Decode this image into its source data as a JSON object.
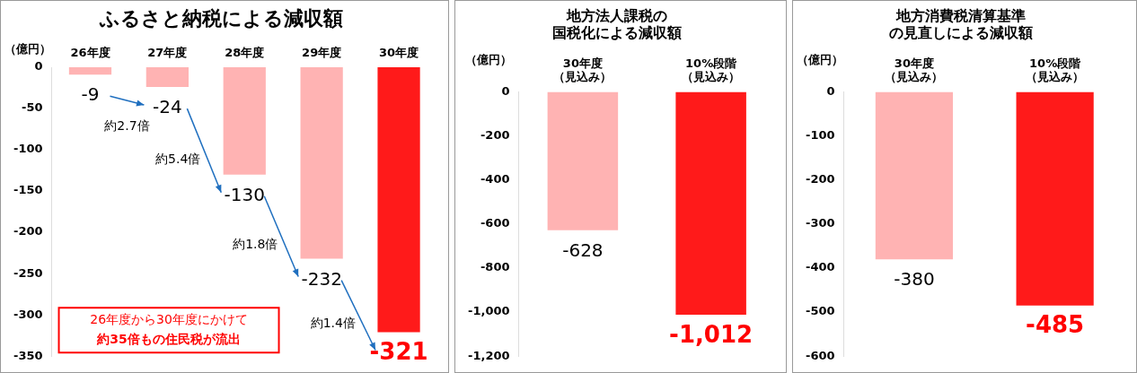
{
  "chart_data": [
    {
      "type": "bar",
      "title": "ふるさと納税による減収額",
      "ylabel": "（億円）",
      "categories": [
        "26年度",
        "27年度",
        "28年度",
        "29年度",
        "30年度"
      ],
      "colors": [
        "#ffb3b3",
        "#ffb3b3",
        "#ffb3b3",
        "#ffb3b3",
        "#ff1a1a"
      ],
      "values": [
        -9,
        -24,
        -130,
        -232,
        -321
      ],
      "ylim": [
        -350,
        0
      ],
      "yticks": [
        0,
        -50,
        -100,
        -150,
        -200,
        -250,
        -300,
        -350
      ],
      "grid": false,
      "legend": false,
      "data_labels": true,
      "annotations": [
        "約2.7倍",
        "約5.4倍",
        "約1.8倍",
        "約1.4倍",
        "26年度から30年度にかけて",
        "約35倍もの住民税が流出"
      ]
    },
    {
      "type": "bar",
      "title": "地方法人課税の国税化による減収額",
      "ylabel": "（億円）",
      "categories": [
        "30年度（見込み）",
        "10%段階（見込み）"
      ],
      "colors": [
        "#ffb3b3",
        "#ff1a1a"
      ],
      "values": [
        -628,
        -1012
      ],
      "value_labels": [
        "-628",
        "-1,012"
      ],
      "ylim": [
        -1200,
        0
      ],
      "yticks": [
        0,
        -200,
        -400,
        -600,
        -800,
        {
          "value": -1000,
          "label": "-1,000"
        },
        {
          "value": -1200,
          "label": "-1,200"
        }
      ],
      "grid": false,
      "legend": false
    },
    {
      "type": "bar",
      "title": "地方消費税清算基準の見直しによる減収額",
      "ylabel": "（億円）",
      "categories": [
        "30年度（見込み）",
        "10%段階（見込み）"
      ],
      "colors": [
        "#ffb3b3",
        "#ff1a1a"
      ],
      "values": [
        -380,
        -485
      ],
      "ylim": [
        -600,
        0
      ],
      "yticks": [
        0,
        -100,
        -200,
        -300,
        -400,
        -500,
        -600
      ],
      "grid": false,
      "legend": false,
      "data_labels": true
    }
  ]
}
